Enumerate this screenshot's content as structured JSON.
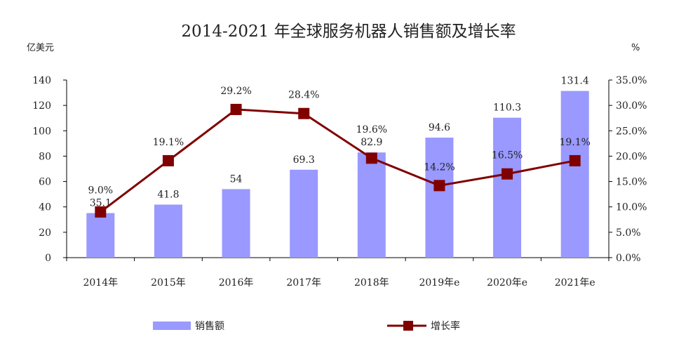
{
  "chart_data": {
    "type": "bar+line",
    "title": "2014-2021 年全球服务机器人销售额及增长率",
    "ylabel_left": "亿美元",
    "ylabel_right": "%",
    "categories": [
      "2014年",
      "2015年",
      "2016年",
      "2017年",
      "2018年",
      "2019年e",
      "2020年e",
      "2021年e"
    ],
    "series": [
      {
        "name": "销售额",
        "type": "bar",
        "axis": "left",
        "color": "#9999ff",
        "values": [
          35.1,
          41.8,
          54,
          69.3,
          82.9,
          94.6,
          110.3,
          131.4
        ],
        "labels": [
          "35.1",
          "41.8",
          "54",
          "69.3",
          "82.9",
          "94.6",
          "110.3",
          "131.4"
        ]
      },
      {
        "name": "增长率",
        "type": "line",
        "axis": "right",
        "color": "#800000",
        "values": [
          9.0,
          19.1,
          29.2,
          28.4,
          19.6,
          14.2,
          16.5,
          19.1
        ],
        "labels": [
          "9.0%",
          "19.1%",
          "29.2%",
          "28.4%",
          "19.6%",
          "14.2%",
          "16.5%",
          "19.1%"
        ]
      }
    ],
    "ylim_left": [
      0,
      140
    ],
    "yticks_left": [
      "0",
      "20",
      "40",
      "60",
      "80",
      "100",
      "120",
      "140"
    ],
    "ylim_right": [
      0,
      35
    ],
    "yticks_right": [
      "0.0%",
      "5.0%",
      "10.0%",
      "15.0%",
      "20.0%",
      "25.0%",
      "30.0%",
      "35.0%"
    ],
    "grid": false,
    "legend": "bottom"
  }
}
